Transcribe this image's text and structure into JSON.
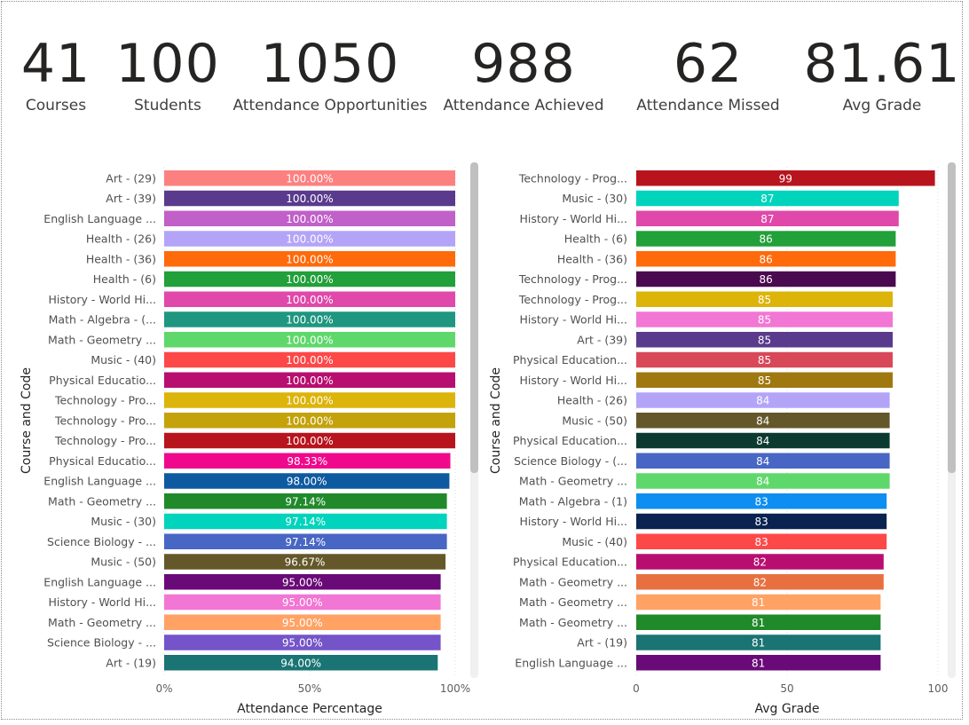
{
  "kpis": [
    {
      "value": "41",
      "label": "Courses"
    },
    {
      "value": "100",
      "label": "Students"
    },
    {
      "value": "1050",
      "label": "Attendance Opportunities"
    },
    {
      "value": "988",
      "label": "Attendance Achieved"
    },
    {
      "value": "62",
      "label": "Attendance Missed"
    },
    {
      "value": "81.61",
      "label": "Avg Grade"
    }
  ],
  "chart_data": [
    {
      "type": "bar",
      "orientation": "horizontal",
      "title": "",
      "xlabel": "Attendance Percentage",
      "ylabel": "Course and Code",
      "xlim": [
        0,
        100
      ],
      "xticks": [
        "0%",
        "50%",
        "100%"
      ],
      "grid": true,
      "categories": [
        "Art - (29)",
        "Art - (39)",
        "English Language ...",
        "Health - (26)",
        "Health - (36)",
        "Health - (6)",
        "History - World Hi...",
        "Math - Algebra - (...",
        "Math - Geometry ...",
        "Music - (40)",
        "Physical Educatio...",
        "Technology - Pro...",
        "Technology - Pro...",
        "Technology - Pro...",
        "Physical Educatio...",
        "English Language ...",
        "Math - Geometry ...",
        "Music - (30)",
        "Science Biology - ...",
        "Music - (50)",
        "English Language ...",
        "History - World Hi...",
        "Math - Geometry ...",
        "Science Biology - ...",
        "Art - (19)"
      ],
      "values": [
        100,
        100,
        100,
        100,
        100,
        100,
        100,
        100,
        100,
        100,
        100,
        100,
        100,
        100,
        98.33,
        98.0,
        97.14,
        97.14,
        97.14,
        96.67,
        95.0,
        95.0,
        95.0,
        95.0,
        94.0
      ],
      "value_labels": [
        "100.00%",
        "100.00%",
        "100.00%",
        "100.00%",
        "100.00%",
        "100.00%",
        "100.00%",
        "100.00%",
        "100.00%",
        "100.00%",
        "100.00%",
        "100.00%",
        "100.00%",
        "100.00%",
        "98.33%",
        "98.00%",
        "97.14%",
        "97.14%",
        "97.14%",
        "96.67%",
        "95.00%",
        "95.00%",
        "95.00%",
        "95.00%",
        "94.00%"
      ],
      "colors": [
        "#fd8080",
        "#5a3a8c",
        "#c060c8",
        "#b4a4f8",
        "#ff6a0a",
        "#22a03a",
        "#e048aa",
        "#1e9680",
        "#5ed86a",
        "#fd4848",
        "#b80e70",
        "#dcb40a",
        "#c4a20a",
        "#b8141e",
        "#f0088c",
        "#0e5aa0",
        "#208a2a",
        "#00d4bc",
        "#4866c4",
        "#64582a",
        "#6a0a78",
        "#f276d4",
        "#ffa264",
        "#7454c8",
        "#1a7474"
      ]
    },
    {
      "type": "bar",
      "orientation": "horizontal",
      "title": "",
      "xlabel": "Avg Grade",
      "ylabel": "Course and Code",
      "xlim": [
        0,
        100
      ],
      "xticks": [
        "0",
        "50",
        "100"
      ],
      "grid": true,
      "categories": [
        "Technology - Prog...",
        "Music - (30)",
        "History - World Hi...",
        "Health - (6)",
        "Health - (36)",
        "Technology - Prog...",
        "Technology - Prog...",
        "History - World Hi...",
        "Art - (39)",
        "Physical Education...",
        "History - World Hi...",
        "Health - (26)",
        "Music - (50)",
        "Physical Education...",
        "Science Biology - (...",
        "Math - Geometry ...",
        "Math - Algebra - (1)",
        "History - World Hi...",
        "Music - (40)",
        "Physical Education...",
        "Math - Geometry ...",
        "Math - Geometry ...",
        "Math - Geometry ...",
        "Art - (19)",
        "English Language ..."
      ],
      "values": [
        99,
        87,
        87,
        86,
        86,
        86,
        85,
        85,
        85,
        85,
        85,
        84,
        84,
        84,
        84,
        84,
        83,
        83,
        83,
        82,
        82,
        81,
        81,
        81,
        81
      ],
      "value_labels": [
        "99",
        "87",
        "87",
        "86",
        "86",
        "86",
        "85",
        "85",
        "85",
        "85",
        "85",
        "84",
        "84",
        "84",
        "84",
        "84",
        "83",
        "83",
        "83",
        "82",
        "82",
        "81",
        "81",
        "81",
        "81"
      ],
      "colors": [
        "#b8141e",
        "#00d4bc",
        "#e048aa",
        "#22a03a",
        "#ff6a0a",
        "#4a0a50",
        "#dcb40a",
        "#f276d4",
        "#5a3a8c",
        "#d84858",
        "#a07810",
        "#b4a4f8",
        "#64582a",
        "#0c3a30",
        "#4866c4",
        "#5ed86a",
        "#0e8ef0",
        "#0a2250",
        "#fd4848",
        "#b80e70",
        "#e87040",
        "#ffa264",
        "#208a2a",
        "#1a7474",
        "#6a0a78"
      ]
    }
  ]
}
